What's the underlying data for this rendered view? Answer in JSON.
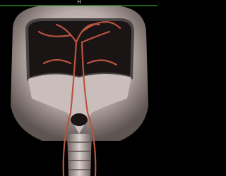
{
  "overlay": {
    "orientation_marker": "H"
  }
}
